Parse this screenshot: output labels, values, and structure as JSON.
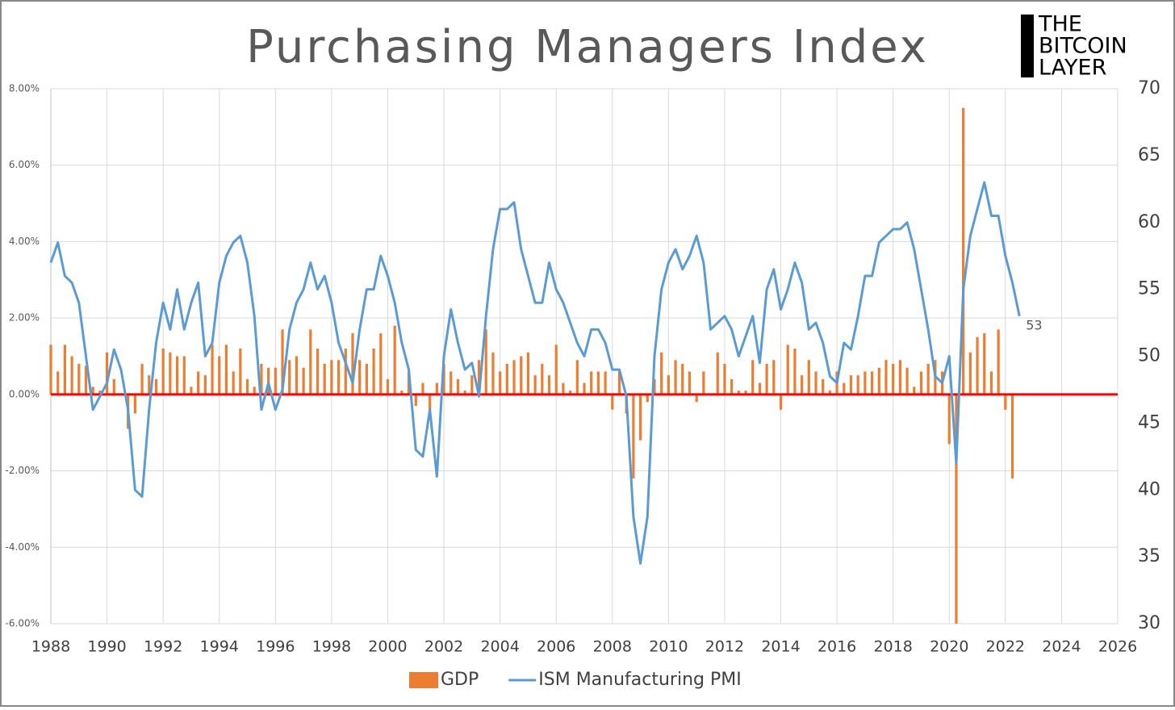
{
  "chart_data": {
    "type": "bar-line",
    "title": "Purchasing Managers Index",
    "logo": [
      "THE",
      "BITCOIN",
      "LAYER"
    ],
    "annotation": "53",
    "xlim": [
      1988,
      2026
    ],
    "xticks": [
      1988,
      1990,
      1992,
      1994,
      1996,
      1998,
      2000,
      2002,
      2004,
      2006,
      2008,
      2010,
      2012,
      2014,
      2016,
      2018,
      2020,
      2022,
      2024,
      2026
    ],
    "ylim": [
      -6,
      8
    ],
    "yticks": [
      {
        "value": -6,
        "label": "-6.00%"
      },
      {
        "value": -4,
        "label": "-4.00%"
      },
      {
        "value": -2,
        "label": "-2.00%"
      },
      {
        "value": 0,
        "label": "0.00%"
      },
      {
        "value": 2,
        "label": "2.00%"
      },
      {
        "value": 4,
        "label": "4.00%"
      },
      {
        "value": 6,
        "label": "6.00%"
      },
      {
        "value": 8,
        "label": "8.00%"
      }
    ],
    "y2lim": [
      30,
      70
    ],
    "y2ticks": [
      30,
      35,
      40,
      45,
      50,
      55,
      60,
      65,
      70
    ],
    "grid": true,
    "zero_line_color": "#ff0000",
    "legend": "bottom",
    "series": [
      {
        "name": "GDP",
        "type": "bar",
        "color": "#ed7d31",
        "x": [
          1988,
          1988.25,
          1988.5,
          1988.75,
          1989,
          1989.25,
          1989.5,
          1989.75,
          1990,
          1990.25,
          1990.5,
          1990.75,
          1991,
          1991.25,
          1991.5,
          1991.75,
          1992,
          1992.25,
          1992.5,
          1992.75,
          1993,
          1993.25,
          1993.5,
          1993.75,
          1994,
          1994.25,
          1994.5,
          1994.75,
          1995,
          1995.25,
          1995.5,
          1995.75,
          1996,
          1996.25,
          1996.5,
          1996.75,
          1997,
          1997.25,
          1997.5,
          1997.75,
          1998,
          1998.25,
          1998.5,
          1998.75,
          1999,
          1999.25,
          1999.5,
          1999.75,
          2000,
          2000.25,
          2000.5,
          2000.75,
          2001,
          2001.25,
          2001.5,
          2001.75,
          2002,
          2002.25,
          2002.5,
          2002.75,
          2003,
          2003.25,
          2003.5,
          2003.75,
          2004,
          2004.25,
          2004.5,
          2004.75,
          2005,
          2005.25,
          2005.5,
          2005.75,
          2006,
          2006.25,
          2006.5,
          2006.75,
          2007,
          2007.25,
          2007.5,
          2007.75,
          2008,
          2008.25,
          2008.5,
          2008.75,
          2009,
          2009.25,
          2009.5,
          2009.75,
          2010,
          2010.25,
          2010.5,
          2010.75,
          2011,
          2011.25,
          2011.5,
          2011.75,
          2012,
          2012.25,
          2012.5,
          2012.75,
          2013,
          2013.25,
          2013.5,
          2013.75,
          2014,
          2014.25,
          2014.5,
          2014.75,
          2015,
          2015.25,
          2015.5,
          2015.75,
          2016,
          2016.25,
          2016.5,
          2016.75,
          2017,
          2017.25,
          2017.5,
          2017.75,
          2018,
          2018.25,
          2018.5,
          2018.75,
          2019,
          2019.25,
          2019.5,
          2019.75,
          2020,
          2020.25,
          2020.5,
          2020.75,
          2021,
          2021.25,
          2021.5,
          2021.75,
          2022,
          2022.25
        ],
        "values": [
          1.3,
          0.6,
          1.3,
          1.0,
          0.8,
          0.75,
          0.2,
          0.1,
          1.1,
          0.4,
          0.0,
          -0.9,
          -0.5,
          0.8,
          0.5,
          0.4,
          1.2,
          1.1,
          1.0,
          1.0,
          0.2,
          0.6,
          0.5,
          1.3,
          1.0,
          1.3,
          0.6,
          1.2,
          0.4,
          0.2,
          0.8,
          0.7,
          0.7,
          1.7,
          0.9,
          1.0,
          0.7,
          1.7,
          1.2,
          0.8,
          0.9,
          0.9,
          1.2,
          1.6,
          0.9,
          0.8,
          1.2,
          1.6,
          0.4,
          1.8,
          0.1,
          0.6,
          -0.3,
          0.3,
          -0.4,
          0.3,
          0.8,
          0.6,
          0.4,
          0.1,
          0.5,
          0.9,
          1.7,
          1.1,
          0.6,
          0.8,
          0.9,
          1.0,
          1.1,
          0.5,
          0.8,
          0.5,
          1.3,
          0.3,
          0.1,
          0.9,
          0.3,
          0.6,
          0.6,
          0.6,
          -0.4,
          0.6,
          -0.5,
          -2.2,
          -1.2,
          -0.2,
          0.4,
          1.1,
          0.5,
          0.9,
          0.8,
          0.6,
          -0.2,
          0.6,
          0.0,
          1.1,
          0.8,
          0.4,
          0.1,
          0.1,
          0.9,
          0.3,
          0.8,
          0.9,
          -0.4,
          1.3,
          1.2,
          0.5,
          0.9,
          0.6,
          0.4,
          0.1,
          0.6,
          0.3,
          0.5,
          0.5,
          0.6,
          0.6,
          0.7,
          0.9,
          0.8,
          0.9,
          0.7,
          0.2,
          0.6,
          0.8,
          0.9,
          0.6,
          -1.3,
          -6.0,
          7.5,
          1.1,
          1.5,
          1.6,
          0.6,
          1.7,
          -0.4,
          -2.2
        ]
      },
      {
        "name": "ISM Manufacturing PMI",
        "type": "line",
        "axis": "y2",
        "color": "#5b9bd5",
        "x": [
          1988,
          1988.25,
          1988.5,
          1988.75,
          1989,
          1989.25,
          1989.5,
          1989.75,
          1990,
          1990.25,
          1990.5,
          1990.75,
          1991,
          1991.25,
          1991.5,
          1991.75,
          1992,
          1992.25,
          1992.5,
          1992.75,
          1993,
          1993.25,
          1993.5,
          1993.75,
          1994,
          1994.25,
          1994.5,
          1994.75,
          1995,
          1995.25,
          1995.5,
          1995.75,
          1996,
          1996.25,
          1996.5,
          1996.75,
          1997,
          1997.25,
          1997.5,
          1997.75,
          1998,
          1998.25,
          1998.5,
          1998.75,
          1999,
          1999.25,
          1999.5,
          1999.75,
          2000,
          2000.25,
          2000.5,
          2000.75,
          2001,
          2001.25,
          2001.5,
          2001.75,
          2002,
          2002.25,
          2002.5,
          2002.75,
          2003,
          2003.25,
          2003.5,
          2003.75,
          2004,
          2004.25,
          2004.5,
          2004.75,
          2005,
          2005.25,
          2005.5,
          2005.75,
          2006,
          2006.25,
          2006.5,
          2006.75,
          2007,
          2007.25,
          2007.5,
          2007.75,
          2008,
          2008.25,
          2008.5,
          2008.75,
          2009,
          2009.25,
          2009.5,
          2009.75,
          2010,
          2010.25,
          2010.5,
          2010.75,
          2011,
          2011.25,
          2011.5,
          2011.75,
          2012,
          2012.25,
          2012.5,
          2012.75,
          2013,
          2013.25,
          2013.5,
          2013.75,
          2014,
          2014.25,
          2014.5,
          2014.75,
          2015,
          2015.25,
          2015.5,
          2015.75,
          2016,
          2016.25,
          2016.5,
          2016.75,
          2017,
          2017.25,
          2017.5,
          2017.75,
          2018,
          2018.25,
          2018.5,
          2018.75,
          2019,
          2019.25,
          2019.5,
          2019.75,
          2020,
          2020.25,
          2020.5,
          2020.75,
          2021,
          2021.25,
          2021.5,
          2021.75,
          2022,
          2022.25,
          2022.5
        ],
        "values": [
          57,
          58.5,
          56,
          55.5,
          54,
          50,
          46,
          47,
          48,
          50.5,
          49,
          46,
          40,
          39.5,
          46,
          51,
          54,
          52,
          55,
          52,
          54,
          55.5,
          50,
          51,
          55.5,
          57.5,
          58.5,
          59,
          57,
          53,
          46,
          48,
          46,
          47.5,
          52,
          54,
          55,
          57,
          55,
          56,
          54,
          51,
          49.5,
          48,
          52,
          55,
          55,
          57.5,
          56,
          54,
          51,
          49,
          43,
          42.5,
          46,
          41,
          50,
          53.5,
          51,
          49,
          49.5,
          47,
          53,
          58,
          61,
          61,
          61.5,
          58,
          56,
          54,
          54,
          57,
          55,
          54,
          52.5,
          51,
          50,
          52,
          52,
          51,
          49,
          49,
          47,
          38,
          34.5,
          38,
          50,
          55,
          57,
          58,
          56.5,
          57.5,
          59,
          57,
          52,
          52.5,
          53,
          52,
          50,
          51.5,
          53,
          49.5,
          55,
          56.5,
          53.5,
          55,
          57,
          55.5,
          52,
          52.5,
          51,
          48.5,
          48,
          51,
          50.5,
          53,
          56,
          56,
          58.5,
          59,
          59.5,
          59.5,
          60,
          58,
          55,
          52,
          48.5,
          48,
          50,
          42,
          55,
          59,
          61,
          63,
          60.5,
          60.5,
          57.5,
          55.5,
          53
        ]
      }
    ]
  }
}
